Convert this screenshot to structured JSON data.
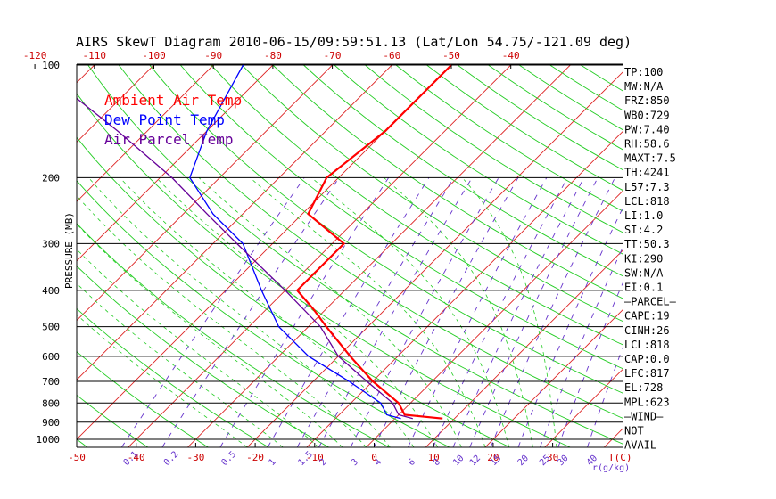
{
  "title": "AIRS SkewT Diagram 2010-06-15/09:59:51.13 (Lat/Lon 54.75/-121.09 deg)",
  "colors": {
    "ambient": "#ff0000",
    "dewpoint": "#0000ff",
    "parcel": "#660099",
    "isotherm": "#dd2222",
    "dry_adiabat": "#22cc22",
    "moist_adiabat": "#22cc22",
    "mixing_ratio": "#6633cc",
    "pressure_line": "#000000",
    "bottom_tick": "#cc0000"
  },
  "chart_data": {
    "type": "line",
    "title": "AIRS SkewT Diagram 2010-06-15/09:59:51.13 (Lat/Lon 54.75/-121.09 deg)",
    "ylabel": "PRESSURE (MB)",
    "xlabel": "T(C)",
    "mixing_ratio_unit": "r(g/kg)",
    "legend": [
      "Ambient Air Temp",
      "Dew Point Temp",
      "Air Parcel Temp"
    ],
    "legend_position": "top-left",
    "pressure_ticks": [
      100,
      200,
      300,
      400,
      500,
      600,
      700,
      800,
      900,
      1000
    ],
    "pressure_tick_labels": [
      "100",
      "200",
      "300",
      "400",
      "500",
      "600",
      "700",
      "800",
      "900",
      "1000"
    ],
    "top_temp_ticks": [
      -120,
      -110,
      -100,
      -90,
      -80,
      -70,
      -60,
      -50,
      -40
    ],
    "top_temp_labels": [
      "-120",
      "-110",
      "-100",
      "-90",
      "-80",
      "-70",
      "-60",
      "-50",
      "-40"
    ],
    "bottom_temp_ticks": [
      -50,
      -40,
      -30,
      -20,
      -10,
      0,
      10,
      20,
      30
    ],
    "bottom_temp_labels": [
      "-50",
      "-40",
      "-30",
      "-20",
      "-10",
      "0",
      "10",
      "20",
      "30"
    ],
    "mixing_ratio_labels": [
      "0.1",
      "0.2",
      "0.5",
      "1",
      "1.5",
      "2",
      "3",
      "4",
      "6",
      "8",
      "10",
      "12",
      "15",
      "20",
      "25",
      "30",
      "40"
    ],
    "mixing_ratio_values": [
      0.1,
      0.2,
      0.5,
      1,
      1.5,
      2,
      3,
      4,
      6,
      8,
      10,
      12,
      15,
      20,
      25,
      30,
      40
    ],
    "series": [
      {
        "name": "Ambient Air Temp",
        "points": [
          [
            880,
            8
          ],
          [
            860,
            1
          ],
          [
            800,
            -2
          ],
          [
            700,
            -10
          ],
          [
            600,
            -18
          ],
          [
            500,
            -27
          ],
          [
            450,
            -32
          ],
          [
            400,
            -38
          ],
          [
            350,
            -38
          ],
          [
            300,
            -38
          ],
          [
            250,
            -49
          ],
          [
            200,
            -52
          ],
          [
            150,
            -50
          ],
          [
            100,
            -50
          ]
        ]
      },
      {
        "name": "Dew Point Temp",
        "points": [
          [
            880,
            1
          ],
          [
            860,
            -2
          ],
          [
            800,
            -5
          ],
          [
            700,
            -14
          ],
          [
            600,
            -25
          ],
          [
            500,
            -35
          ],
          [
            400,
            -44
          ],
          [
            300,
            -55
          ],
          [
            250,
            -65
          ],
          [
            200,
            -75
          ],
          [
            150,
            -80
          ],
          [
            100,
            -85
          ]
        ]
      },
      {
        "name": "Air Parcel Temp",
        "points": [
          [
            880,
            3
          ],
          [
            860,
            0
          ],
          [
            800,
            -3
          ],
          [
            700,
            -11
          ],
          [
            600,
            -20
          ],
          [
            500,
            -28
          ],
          [
            400,
            -40
          ],
          [
            300,
            -56
          ],
          [
            250,
            -66
          ],
          [
            200,
            -78
          ],
          [
            150,
            -95
          ],
          [
            100,
            -120
          ]
        ]
      }
    ]
  },
  "indices": [
    "TP:100",
    "MW:N/A",
    "FRZ:850",
    "WB0:729",
    "PW:7.40",
    "RH:58.6",
    "MAXT:7.5",
    "TH:4241",
    "L57:7.3",
    "LCL:818",
    "LI:1.0",
    "SI:4.2",
    "TT:50.3",
    "KI:290",
    "SW:N/A",
    "EI:0.1",
    "—PARCEL—",
    "CAPE:19",
    "CINH:26",
    "LCL:818",
    "CAP:0.0",
    "LFC:817",
    "EL:728",
    "MPL:623",
    "—WIND—",
    "NOT",
    "AVAIL"
  ]
}
